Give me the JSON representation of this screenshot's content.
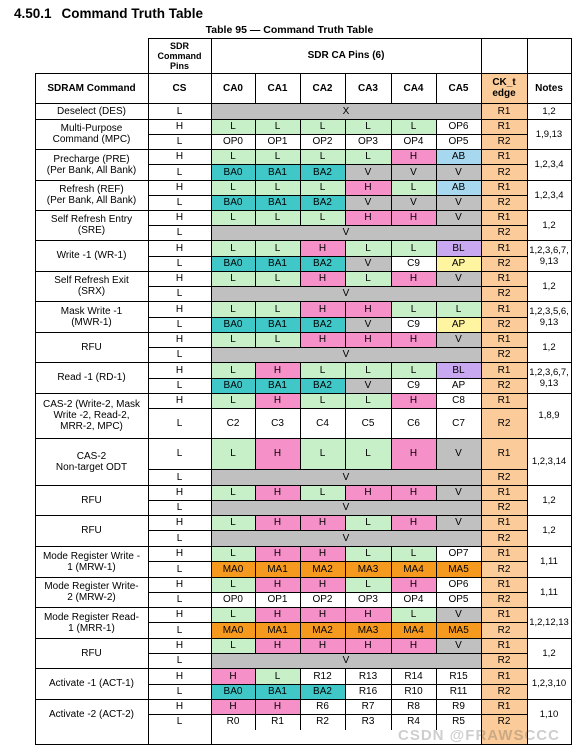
{
  "heading": {
    "number": "4.50.1",
    "title": "Command Truth Table"
  },
  "caption": "Table 95 — Command Truth Table",
  "header": {
    "sdr_command_pins": "SDR\nCommand\nPins",
    "sdr_ca_pins": "SDR CA Pins (6)",
    "sdram_command": "SDRAM Command",
    "cs": "CS",
    "ca": [
      "CA0",
      "CA1",
      "CA2",
      "CA3",
      "CA4",
      "CA5"
    ],
    "ck_t_edge": "CK_t\nedge",
    "notes": "Notes"
  },
  "colors": {
    "gray": "#c0c0c0",
    "green": "#c8f0c8",
    "pink": "#f590c8",
    "teal": "#40c8c8",
    "blue": "#a8d8f0",
    "yellow": "#fff5a0",
    "purple": "#c8a8f0",
    "orange": "#f59a1e",
    "peach": "#fbcc9a"
  },
  "rows": [
    {
      "command": "Deselect (DES)",
      "notes": "1,2",
      "lines": [
        {
          "cs": "L",
          "span": "X",
          "edge": "R1"
        }
      ]
    },
    {
      "command": "Multi-Purpose\nCommand (MPC)",
      "notes": "1,9,13",
      "lines": [
        {
          "cs": "H",
          "ca": [
            [
              "L",
              "green"
            ],
            [
              "L",
              "green"
            ],
            [
              "L",
              "green"
            ],
            [
              "L",
              "green"
            ],
            [
              "L",
              "green"
            ],
            [
              "OP6",
              ""
            ]
          ],
          "edge": "R1"
        },
        {
          "cs": "L",
          "ca": [
            [
              "OP0",
              ""
            ],
            [
              "OP1",
              ""
            ],
            [
              "OP2",
              ""
            ],
            [
              "OP3",
              ""
            ],
            [
              "OP4",
              ""
            ],
            [
              "OP5",
              ""
            ]
          ],
          "edge": "R2"
        }
      ]
    },
    {
      "command": "Precharge (PRE)\n(Per Bank, All Bank)",
      "notes": "1,2,3,4",
      "lines": [
        {
          "cs": "H",
          "ca": [
            [
              "L",
              "green"
            ],
            [
              "L",
              "green"
            ],
            [
              "L",
              "green"
            ],
            [
              "L",
              "green"
            ],
            [
              "H",
              "pink"
            ],
            [
              "AB",
              "blue"
            ]
          ],
          "edge": "R1"
        },
        {
          "cs": "L",
          "ca": [
            [
              "BA0",
              "teal"
            ],
            [
              "BA1",
              "teal"
            ],
            [
              "BA2",
              "teal"
            ],
            [
              "V",
              "gray"
            ],
            [
              "V",
              "gray"
            ],
            [
              "V",
              "gray"
            ]
          ],
          "edge": "R2"
        }
      ]
    },
    {
      "command": "Refresh (REF)\n(Per Bank, All Bank)",
      "notes": "1,2,3,4",
      "lines": [
        {
          "cs": "H",
          "ca": [
            [
              "L",
              "green"
            ],
            [
              "L",
              "green"
            ],
            [
              "L",
              "green"
            ],
            [
              "H",
              "pink"
            ],
            [
              "L",
              "green"
            ],
            [
              "AB",
              "blue"
            ]
          ],
          "edge": "R1"
        },
        {
          "cs": "L",
          "ca": [
            [
              "BA0",
              "teal"
            ],
            [
              "BA1",
              "teal"
            ],
            [
              "BA2",
              "teal"
            ],
            [
              "V",
              "gray"
            ],
            [
              "V",
              "gray"
            ],
            [
              "V",
              "gray"
            ]
          ],
          "edge": "R2"
        }
      ]
    },
    {
      "command": "Self Refresh Entry\n(SRE)",
      "notes": "1,2",
      "lines": [
        {
          "cs": "H",
          "ca": [
            [
              "L",
              "green"
            ],
            [
              "L",
              "green"
            ],
            [
              "L",
              "green"
            ],
            [
              "H",
              "pink"
            ],
            [
              "H",
              "pink"
            ],
            [
              "V",
              "gray"
            ]
          ],
          "edge": "R1"
        },
        {
          "cs": "L",
          "span": "V",
          "edge": "R2"
        }
      ]
    },
    {
      "command": "Write -1 (WR-1)",
      "notes": "1,2,3,6,7,\n9,13",
      "lines": [
        {
          "cs": "H",
          "ca": [
            [
              "L",
              "green"
            ],
            [
              "L",
              "green"
            ],
            [
              "H",
              "pink"
            ],
            [
              "L",
              "green"
            ],
            [
              "L",
              "green"
            ],
            [
              "BL",
              "purple"
            ]
          ],
          "edge": "R1"
        },
        {
          "cs": "L",
          "ca": [
            [
              "BA0",
              "teal"
            ],
            [
              "BA1",
              "teal"
            ],
            [
              "BA2",
              "teal"
            ],
            [
              "V",
              "gray"
            ],
            [
              "C9",
              ""
            ],
            [
              "AP",
              "yellow"
            ]
          ],
          "edge": "R2"
        }
      ]
    },
    {
      "command": "Self Refresh Exit\n(SRX)",
      "notes": "1,2",
      "lines": [
        {
          "cs": "H",
          "ca": [
            [
              "L",
              "green"
            ],
            [
              "L",
              "green"
            ],
            [
              "H",
              "pink"
            ],
            [
              "L",
              "green"
            ],
            [
              "H",
              "pink"
            ],
            [
              "V",
              "gray"
            ]
          ],
          "edge": "R1"
        },
        {
          "cs": "L",
          "span": "V",
          "edge": "R2"
        }
      ]
    },
    {
      "command": "Mask Write -1\n(MWR-1)",
      "notes": "1,2,3,5,6,\n9,13",
      "lines": [
        {
          "cs": "H",
          "ca": [
            [
              "L",
              "green"
            ],
            [
              "L",
              "green"
            ],
            [
              "H",
              "pink"
            ],
            [
              "H",
              "pink"
            ],
            [
              "L",
              "green"
            ],
            [
              "L",
              "green"
            ]
          ],
          "edge": "R1"
        },
        {
          "cs": "L",
          "ca": [
            [
              "BA0",
              "teal"
            ],
            [
              "BA1",
              "teal"
            ],
            [
              "BA2",
              "teal"
            ],
            [
              "V",
              "gray"
            ],
            [
              "C9",
              ""
            ],
            [
              "AP",
              "yellow"
            ]
          ],
          "edge": "R2"
        }
      ]
    },
    {
      "command": "RFU",
      "notes": "1,2",
      "lines": [
        {
          "cs": "H",
          "ca": [
            [
              "L",
              "green"
            ],
            [
              "L",
              "green"
            ],
            [
              "H",
              "pink"
            ],
            [
              "H",
              "pink"
            ],
            [
              "H",
              "pink"
            ],
            [
              "V",
              "gray"
            ]
          ],
          "edge": "R1"
        },
        {
          "cs": "L",
          "span": "V",
          "edge": "R2"
        }
      ]
    },
    {
      "command": "Read -1 (RD-1)",
      "notes": "1,2,3,6,7,\n9,13",
      "lines": [
        {
          "cs": "H",
          "ca": [
            [
              "L",
              "green"
            ],
            [
              "H",
              "pink"
            ],
            [
              "L",
              "green"
            ],
            [
              "L",
              "green"
            ],
            [
              "L",
              "green"
            ],
            [
              "BL",
              "purple"
            ]
          ],
          "edge": "R1"
        },
        {
          "cs": "L",
          "ca": [
            [
              "BA0",
              "teal"
            ],
            [
              "BA1",
              "teal"
            ],
            [
              "BA2",
              "teal"
            ],
            [
              "V",
              "gray"
            ],
            [
              "C9",
              ""
            ],
            [
              "AP",
              ""
            ]
          ],
          "edge": "R2"
        }
      ]
    },
    {
      "command": "CAS-2 (Write-2, Mask\nWrite -2, Read-2,\nMRR-2, MPC)",
      "notes": "1,8,9",
      "lines": [
        {
          "cs": "H",
          "ca": [
            [
              "L",
              "green"
            ],
            [
              "H",
              "pink"
            ],
            [
              "L",
              "green"
            ],
            [
              "L",
              "green"
            ],
            [
              "H",
              "pink"
            ],
            [
              "C8",
              ""
            ]
          ],
          "edge": "R1"
        },
        {
          "cs": "L",
          "ca": [
            [
              "C2",
              ""
            ],
            [
              "C3",
              ""
            ],
            [
              "C4",
              ""
            ],
            [
              "C5",
              ""
            ],
            [
              "C6",
              ""
            ],
            [
              "C7",
              ""
            ]
          ],
          "edge": "R2"
        }
      ]
    },
    {
      "command": "CAS-2\nNon-target ODT",
      "notes": "1,2,3,14",
      "lines": [
        {
          "cs": "L",
          "ca": [
            [
              "L",
              "green"
            ],
            [
              "H",
              "pink"
            ],
            [
              "L",
              "green"
            ],
            [
              "L",
              "green"
            ],
            [
              "H",
              "pink"
            ],
            [
              "V",
              "gray"
            ]
          ],
          "edge": "R1"
        },
        {
          "cs": "L",
          "span": "V",
          "edge": "R2"
        }
      ]
    },
    {
      "command": "RFU",
      "notes": "1,2",
      "lines": [
        {
          "cs": "H",
          "ca": [
            [
              "L",
              "green"
            ],
            [
              "H",
              "pink"
            ],
            [
              "L",
              "green"
            ],
            [
              "H",
              "pink"
            ],
            [
              "H",
              "pink"
            ],
            [
              "V",
              "gray"
            ]
          ],
          "edge": "R1"
        },
        {
          "cs": "L",
          "span": "V",
          "edge": "R2"
        }
      ]
    },
    {
      "command": "RFU",
      "notes": "1,2",
      "lines": [
        {
          "cs": "H",
          "ca": [
            [
              "L",
              "green"
            ],
            [
              "H",
              "pink"
            ],
            [
              "H",
              "pink"
            ],
            [
              "L",
              "green"
            ],
            [
              "H",
              "pink"
            ],
            [
              "V",
              "gray"
            ]
          ],
          "edge": "R1"
        },
        {
          "cs": "L",
          "span": "V",
          "edge": "R2"
        }
      ]
    },
    {
      "command": "Mode Register Write -\n1 (MRW-1)",
      "notes": "1,11",
      "lines": [
        {
          "cs": "H",
          "ca": [
            [
              "L",
              "green"
            ],
            [
              "H",
              "pink"
            ],
            [
              "H",
              "pink"
            ],
            [
              "L",
              "green"
            ],
            [
              "L",
              "green"
            ],
            [
              "OP7",
              ""
            ]
          ],
          "edge": "R1"
        },
        {
          "cs": "L",
          "ca": [
            [
              "MA0",
              "orange"
            ],
            [
              "MA1",
              "orange"
            ],
            [
              "MA2",
              "orange"
            ],
            [
              "MA3",
              "orange"
            ],
            [
              "MA4",
              "orange"
            ],
            [
              "MA5",
              "orange"
            ]
          ],
          "edge": "R2"
        }
      ]
    },
    {
      "command": "Mode Register Write-\n2 (MRW-2)",
      "notes": "1,11",
      "lines": [
        {
          "cs": "H",
          "ca": [
            [
              "L",
              "green"
            ],
            [
              "H",
              "pink"
            ],
            [
              "H",
              "pink"
            ],
            [
              "L",
              "green"
            ],
            [
              "H",
              "pink"
            ],
            [
              "OP6",
              ""
            ]
          ],
          "edge": "R1"
        },
        {
          "cs": "L",
          "ca": [
            [
              "OP0",
              ""
            ],
            [
              "OP1",
              ""
            ],
            [
              "OP2",
              ""
            ],
            [
              "OP3",
              ""
            ],
            [
              "OP4",
              ""
            ],
            [
              "OP5",
              ""
            ]
          ],
          "edge": "R2"
        }
      ]
    },
    {
      "command": "Mode Register Read-\n1 (MRR-1)",
      "notes": "1,2,12,13",
      "lines": [
        {
          "cs": "H",
          "ca": [
            [
              "L",
              "green"
            ],
            [
              "H",
              "pink"
            ],
            [
              "H",
              "pink"
            ],
            [
              "H",
              "pink"
            ],
            [
              "L",
              "green"
            ],
            [
              "V",
              "gray"
            ]
          ],
          "edge": "R1"
        },
        {
          "cs": "L",
          "ca": [
            [
              "MA0",
              "orange"
            ],
            [
              "MA1",
              "orange"
            ],
            [
              "MA2",
              "orange"
            ],
            [
              "MA3",
              "orange"
            ],
            [
              "MA4",
              "orange"
            ],
            [
              "MA5",
              "orange"
            ]
          ],
          "edge": "R2"
        }
      ]
    },
    {
      "command": "RFU",
      "notes": "1,2",
      "lines": [
        {
          "cs": "H",
          "ca": [
            [
              "L",
              "green"
            ],
            [
              "H",
              "pink"
            ],
            [
              "H",
              "pink"
            ],
            [
              "H",
              "pink"
            ],
            [
              "H",
              "pink"
            ],
            [
              "V",
              "gray"
            ]
          ],
          "edge": "R1"
        },
        {
          "cs": "L",
          "span": "V",
          "edge": "R2"
        }
      ]
    },
    {
      "command": "Activate -1 (ACT-1)",
      "notes": "1,2,3,10",
      "lines": [
        {
          "cs": "H",
          "ca": [
            [
              "H",
              "pink"
            ],
            [
              "L",
              "green"
            ],
            [
              "R12",
              ""
            ],
            [
              "R13",
              ""
            ],
            [
              "R14",
              ""
            ],
            [
              "R15",
              ""
            ]
          ],
          "edge": "R1"
        },
        {
          "cs": "L",
          "ca": [
            [
              "BA0",
              "teal"
            ],
            [
              "BA1",
              "teal"
            ],
            [
              "BA2",
              "teal"
            ],
            [
              "R16",
              ""
            ],
            [
              "R10",
              ""
            ],
            [
              "R11",
              ""
            ]
          ],
          "edge": "R2"
        }
      ]
    },
    {
      "command": "Activate -2 (ACT-2)",
      "notes": "1,10",
      "lines": [
        {
          "cs": "H",
          "ca": [
            [
              "H",
              "pink"
            ],
            [
              "H",
              "pink"
            ],
            [
              "R6",
              ""
            ],
            [
              "R7",
              ""
            ],
            [
              "R8",
              ""
            ],
            [
              "R9",
              ""
            ]
          ],
          "edge": "R1"
        },
        {
          "cs": "L",
          "ca": [
            [
              "R0",
              ""
            ],
            [
              "R1",
              ""
            ],
            [
              "R2",
              ""
            ],
            [
              "R3",
              ""
            ],
            [
              "R4",
              ""
            ],
            [
              "R5",
              ""
            ]
          ],
          "edge": "R2"
        }
      ]
    }
  ],
  "watermark": "CSDN @FRAWSCCC"
}
